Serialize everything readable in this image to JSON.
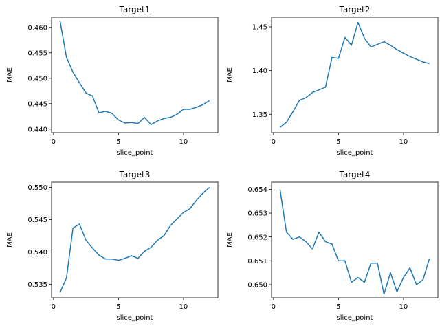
{
  "chart_data": [
    {
      "type": "line",
      "title": "Target1",
      "xlabel": "slice_point",
      "ylabel": "MAE",
      "xlim": [
        -0.15,
        12.65
      ],
      "ylim": [
        0.4393,
        0.462
      ],
      "xticks": [
        0,
        5,
        10
      ],
      "xtick_labels": [
        "0",
        "5",
        "10"
      ],
      "yticks": [
        0.44,
        0.445,
        0.45,
        0.455,
        0.46
      ],
      "ytick_labels": [
        "0.440",
        "0.445",
        "0.450",
        "0.455",
        "0.460"
      ],
      "grid": false,
      "color": "#1f77b4",
      "x": [
        0.5,
        1,
        1.5,
        2,
        2.5,
        3,
        3.5,
        4,
        4.5,
        5,
        5.5,
        6,
        6.5,
        7,
        7.5,
        8,
        8.5,
        9,
        9.5,
        10,
        10.5,
        11,
        11.5,
        12
      ],
      "y": [
        0.4613,
        0.4541,
        0.4512,
        0.4491,
        0.4471,
        0.4465,
        0.4432,
        0.4435,
        0.4431,
        0.4418,
        0.4412,
        0.4413,
        0.4411,
        0.4423,
        0.4409,
        0.4416,
        0.4421,
        0.4423,
        0.4429,
        0.4439,
        0.4439,
        0.4443,
        0.4448,
        0.4456
      ]
    },
    {
      "type": "line",
      "title": "Target2",
      "xlabel": "slice_point",
      "ylabel": "MAE",
      "xlim": [
        -0.15,
        12.65
      ],
      "ylim": [
        1.329,
        1.461
      ],
      "xticks": [
        0,
        5,
        10
      ],
      "xtick_labels": [
        "0",
        "5",
        "10"
      ],
      "yticks": [
        1.35,
        1.4,
        1.45
      ],
      "ytick_labels": [
        "1.35",
        "1.40",
        "1.45"
      ],
      "grid": false,
      "color": "#1f77b4",
      "x": [
        0.5,
        1,
        1.5,
        2,
        2.5,
        3,
        3.5,
        4,
        4.5,
        5,
        5.5,
        6,
        6.5,
        7,
        7.5,
        8,
        8.5,
        9,
        9.5,
        10,
        10.5,
        11,
        11.5,
        12
      ],
      "y": [
        1.335,
        1.341,
        1.353,
        1.366,
        1.369,
        1.375,
        1.378,
        1.381,
        1.415,
        1.414,
        1.438,
        1.429,
        1.455,
        1.437,
        1.427,
        1.43,
        1.433,
        1.429,
        1.424,
        1.42,
        1.416,
        1.413,
        1.41,
        1.408
      ]
    },
    {
      "type": "line",
      "title": "Target3",
      "xlabel": "slice_point",
      "ylabel": "MAE",
      "xlim": [
        -0.15,
        12.65
      ],
      "ylim": [
        0.5329,
        0.5508
      ],
      "xticks": [
        0,
        5,
        10
      ],
      "xtick_labels": [
        "0",
        "5",
        "10"
      ],
      "yticks": [
        0.535,
        0.54,
        0.545,
        0.55
      ],
      "ytick_labels": [
        "0.535",
        "0.540",
        "0.545",
        "0.550"
      ],
      "grid": false,
      "color": "#1f77b4",
      "x": [
        0.5,
        1,
        1.5,
        2,
        2.5,
        3,
        3.5,
        4,
        4.5,
        5,
        5.5,
        6,
        6.5,
        7,
        7.5,
        8,
        8.5,
        9,
        9.5,
        10,
        10.5,
        11,
        11.5,
        12
      ],
      "y": [
        0.5337,
        0.536,
        0.5437,
        0.5443,
        0.5418,
        0.5406,
        0.5395,
        0.5389,
        0.5389,
        0.5387,
        0.539,
        0.5394,
        0.539,
        0.5401,
        0.5407,
        0.5418,
        0.5425,
        0.5441,
        0.5451,
        0.5461,
        0.5467,
        0.548,
        0.5491,
        0.55
      ]
    },
    {
      "type": "line",
      "title": "Target4",
      "xlabel": "slice_point",
      "ylabel": "MAE",
      "xlim": [
        -0.15,
        12.65
      ],
      "ylim": [
        0.64945,
        0.6543
      ],
      "xticks": [
        0,
        5,
        10
      ],
      "xtick_labels": [
        "0",
        "5",
        "10"
      ],
      "yticks": [
        0.65,
        0.651,
        0.652,
        0.653,
        0.654
      ],
      "ytick_labels": [
        "0.650",
        "0.651",
        "0.652",
        "0.653",
        "0.654"
      ],
      "grid": false,
      "color": "#1f77b4",
      "x": [
        0.5,
        1,
        1.5,
        2,
        2.5,
        3,
        3.5,
        4,
        4.5,
        5,
        5.5,
        6,
        6.5,
        7,
        7.5,
        8,
        8.5,
        9,
        9.5,
        10,
        10.5,
        11,
        11.5,
        12
      ],
      "y": [
        0.654,
        0.6522,
        0.6519,
        0.652,
        0.6518,
        0.6515,
        0.6522,
        0.6518,
        0.6517,
        0.651,
        0.651,
        0.6501,
        0.6503,
        0.6501,
        0.6509,
        0.6509,
        0.6496,
        0.6505,
        0.6497,
        0.6503,
        0.6507,
        0.65,
        0.6502,
        0.6511
      ]
    }
  ]
}
